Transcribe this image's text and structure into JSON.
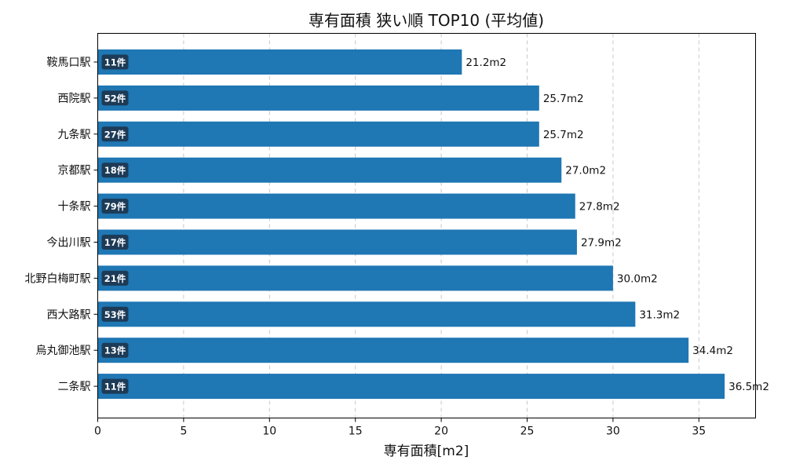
{
  "chart_data": {
    "type": "bar",
    "orientation": "horizontal",
    "title": "専有面積 狭い順 TOP10 (平均値)",
    "xlabel": "専有面積[m2]",
    "ylabel": "",
    "xlim": [
      0,
      38.3
    ],
    "xticks": [
      0,
      5,
      10,
      15,
      20,
      25,
      30,
      35
    ],
    "grid": "x-dashed",
    "bar_color": "#1f77b4",
    "badge_color": "#1d3b57",
    "categories": [
      "鞍馬口駅",
      "西院駅",
      "九条駅",
      "京都駅",
      "十条駅",
      "今出川駅",
      "北野白梅町駅",
      "西大路駅",
      "烏丸御池駅",
      "二条駅"
    ],
    "values": [
      21.2,
      25.7,
      25.7,
      27.0,
      27.8,
      27.9,
      30.0,
      31.3,
      34.4,
      36.5
    ],
    "value_labels": [
      "21.2m2",
      "25.7m2",
      "25.7m2",
      "27.0m2",
      "27.8m2",
      "27.9m2",
      "30.0m2",
      "31.3m2",
      "34.4m2",
      "36.5m2"
    ],
    "counts": [
      "11件",
      "52件",
      "27件",
      "18件",
      "79件",
      "17件",
      "21件",
      "53件",
      "13件",
      "11件"
    ]
  }
}
